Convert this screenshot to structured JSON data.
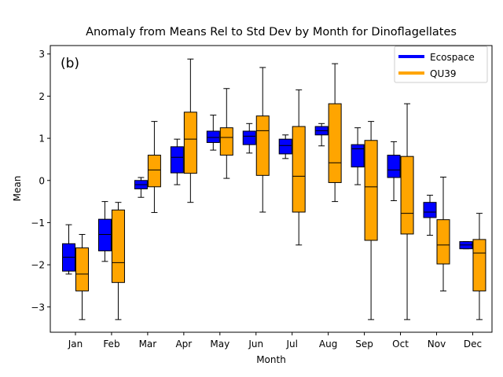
{
  "chart_data": {
    "type": "box",
    "title": "Anomaly from Means Rel to Std Dev by Month for Dinoflagellates",
    "panel_label": "(b)",
    "xlabel": "Month",
    "ylabel": "Mean",
    "ylim": [
      -3.6,
      3.2
    ],
    "yticks": [
      -3,
      -2,
      -1,
      0,
      1,
      2,
      3
    ],
    "categories": [
      "Jan",
      "Feb",
      "Mar",
      "Apr",
      "May",
      "Jun",
      "Jul",
      "Aug",
      "Sep",
      "Oct",
      "Nov",
      "Dec"
    ],
    "legend_position": "top-right",
    "grid": false,
    "series": [
      {
        "name": "Ecospace",
        "color": "#0000ff",
        "boxes": [
          {
            "whislo": -2.22,
            "q1": -2.15,
            "med": -1.82,
            "q3": -1.5,
            "whishi": -1.05
          },
          {
            "whislo": -1.92,
            "q1": -1.67,
            "med": -1.28,
            "q3": -0.92,
            "whishi": -0.5
          },
          {
            "whislo": -0.4,
            "q1": -0.2,
            "med": -0.1,
            "q3": 0.0,
            "whishi": 0.07
          },
          {
            "whislo": -0.1,
            "q1": 0.18,
            "med": 0.55,
            "q3": 0.8,
            "whishi": 0.98
          },
          {
            "whislo": 0.72,
            "q1": 0.9,
            "med": 1.02,
            "q3": 1.17,
            "whishi": 1.55
          },
          {
            "whislo": 0.65,
            "q1": 0.85,
            "med": 1.05,
            "q3": 1.17,
            "whishi": 1.35
          },
          {
            "whislo": 0.52,
            "q1": 0.63,
            "med": 0.83,
            "q3": 0.98,
            "whishi": 1.08
          },
          {
            "whislo": 0.82,
            "q1": 1.08,
            "med": 1.18,
            "q3": 1.28,
            "whishi": 1.35
          },
          {
            "whislo": -0.1,
            "q1": 0.32,
            "med": 0.75,
            "q3": 0.85,
            "whishi": 1.25
          },
          {
            "whislo": -0.48,
            "q1": 0.07,
            "med": 0.25,
            "q3": 0.6,
            "whishi": 0.92
          },
          {
            "whislo": -1.3,
            "q1": -0.88,
            "med": -0.75,
            "q3": -0.52,
            "whishi": -0.35
          },
          {
            "whislo": -1.62,
            "q1": -1.62,
            "med": -1.53,
            "q3": -1.45,
            "whishi": -1.45
          }
        ]
      },
      {
        "name": "QU39",
        "color": "#ffa500",
        "boxes": [
          {
            "whislo": -3.3,
            "q1": -2.62,
            "med": -2.22,
            "q3": -1.6,
            "whishi": -1.28
          },
          {
            "whislo": -3.3,
            "q1": -2.42,
            "med": -1.95,
            "q3": -0.7,
            "whishi": -0.52
          },
          {
            "whislo": -0.76,
            "q1": -0.15,
            "med": 0.25,
            "q3": 0.6,
            "whishi": 1.4
          },
          {
            "whislo": -0.52,
            "q1": 0.17,
            "med": 0.98,
            "q3": 1.62,
            "whishi": 2.88
          },
          {
            "whislo": 0.05,
            "q1": 0.6,
            "med": 1.02,
            "q3": 1.25,
            "whishi": 2.18
          },
          {
            "whislo": -0.75,
            "q1": 0.12,
            "med": 1.18,
            "q3": 1.53,
            "whishi": 2.68
          },
          {
            "whislo": -1.53,
            "q1": -0.75,
            "med": 0.1,
            "q3": 1.28,
            "whishi": 2.15
          },
          {
            "whislo": -0.5,
            "q1": -0.05,
            "med": 0.42,
            "q3": 1.82,
            "whishi": 2.77
          },
          {
            "whislo": -3.3,
            "q1": -1.42,
            "med": -0.15,
            "q3": 0.95,
            "whishi": 1.4
          },
          {
            "whislo": -3.3,
            "q1": -1.27,
            "med": -0.78,
            "q3": 0.57,
            "whishi": 1.82
          },
          {
            "whislo": -2.62,
            "q1": -1.98,
            "med": -1.53,
            "q3": -0.93,
            "whishi": 0.08
          },
          {
            "whislo": -3.3,
            "q1": -2.62,
            "med": -1.72,
            "q3": -1.4,
            "whishi": -0.78
          }
        ]
      }
    ]
  }
}
